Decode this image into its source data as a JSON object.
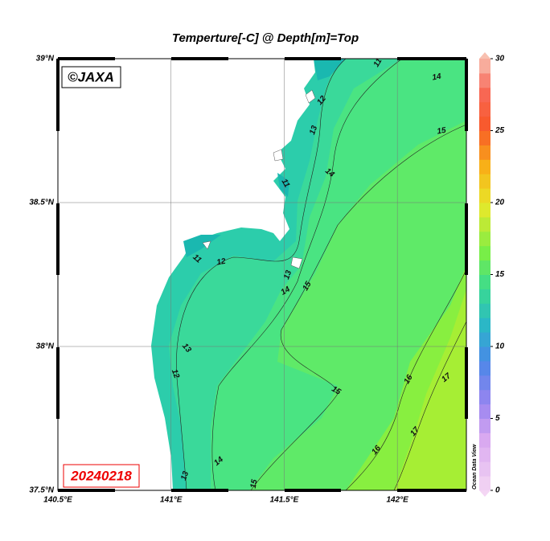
{
  "title": "Temperture[-C] @ Depth[m]=Top",
  "watermark": "©JAXA",
  "date": "20240218",
  "credit": "Ocean Data View",
  "map": {
    "xlim": [
      140.5,
      142.305
    ],
    "ylim": [
      37.5,
      39
    ],
    "xticks": [
      {
        "value": 140.5,
        "label": "140.5°E"
      },
      {
        "value": 141,
        "label": "141°E"
      },
      {
        "value": 141.5,
        "label": "141.5°E"
      },
      {
        "value": 142,
        "label": "142°E"
      }
    ],
    "yticks": [
      {
        "value": 37.5,
        "label": "37.5°N"
      },
      {
        "value": 38,
        "label": "38°N"
      },
      {
        "value": 38.5,
        "label": "38.5°N"
      },
      {
        "value": 39,
        "label": "39°N"
      }
    ],
    "grid": true
  },
  "colorbar": {
    "ylim": [
      0,
      30
    ],
    "yticks": [
      0,
      5,
      10,
      15,
      20,
      25,
      30
    ]
  },
  "contour_labels": [
    "11",
    "14",
    "12",
    "13",
    "15",
    "14",
    "11",
    "11",
    "12",
    "13",
    "14",
    "15",
    "13",
    "12",
    "15",
    "16",
    "17",
    "17",
    "16",
    "14",
    "13",
    "15"
  ]
}
